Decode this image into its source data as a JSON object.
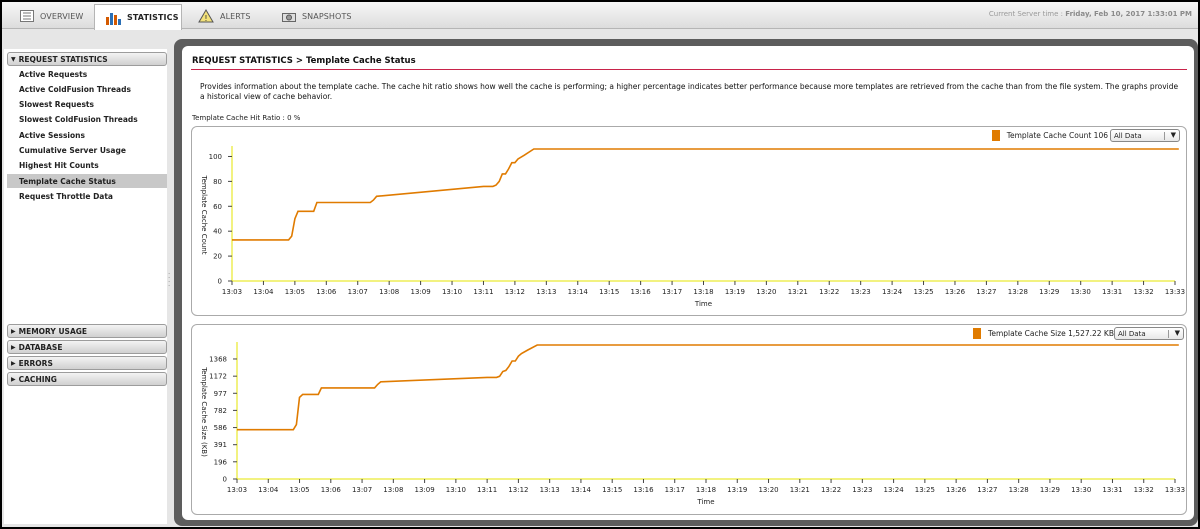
{
  "tabs": [
    {
      "label": "OVERVIEW",
      "icon": "list-icon"
    },
    {
      "label": "STATISTICS",
      "icon": "bar-chart-icon",
      "active": true
    },
    {
      "label": "ALERTS",
      "icon": "warning-icon"
    },
    {
      "label": "SNAPSHOTS",
      "icon": "camera-icon"
    }
  ],
  "server_time": {
    "label": "Current Server time : ",
    "value": "Friday, Feb 10, 2017  1:33:01 PM"
  },
  "sidebar": {
    "request_section": "REQUEST STATISTICS",
    "items": [
      "Active Requests",
      "Active ColdFusion Threads",
      "Slowest Requests",
      "Slowest ColdFusion Threads",
      "Active Sessions",
      "Cumulative Server Usage",
      "Highest Hit Counts",
      "Template Cache Status",
      "Request Throttle Data"
    ],
    "selected_index": 7,
    "other_sections": [
      "MEMORY USAGE",
      "DATABASE",
      "ERRORS",
      "CACHING"
    ]
  },
  "page": {
    "title": "REQUEST STATISTICS > Template Cache Status",
    "description": "Provides information about the template cache. The cache hit ratio shows how well the cache is performing; a higher percentage indicates better performance because more templates are retrieved from the cache than from the file system. The graphs provide a historical view of cache behavior.",
    "hit_ratio": "Template Cache Hit Ratio : 0 %"
  },
  "colors": {
    "series": "#e07b00",
    "accent_line": "#c8234a",
    "axis_yellow": "#e6e600"
  },
  "chart_data": [
    {
      "type": "line",
      "legend_label": "Template Cache Count 106",
      "dropdown_value": "All Data",
      "ylabel": "Template Cache Count",
      "xlabel": "Time",
      "yticks": [
        0,
        20,
        40,
        60,
        80,
        100
      ],
      "ylim": [
        0,
        106
      ],
      "xticks": [
        "13:03",
        "13:04",
        "13:05",
        "13:06",
        "13:07",
        "13:08",
        "13:09",
        "13:10",
        "13:11",
        "13:12",
        "13:13",
        "13:14",
        "13:15",
        "13:16",
        "13:17",
        "13:18",
        "13:19",
        "13:20",
        "13:21",
        "13:22",
        "13:23",
        "13:24",
        "13:25",
        "13:26",
        "13:27",
        "13:28",
        "13:29",
        "13:30",
        "13:31",
        "13:32",
        "13:33"
      ],
      "series": [
        {
          "x": [
            0,
            1.8,
            1.9,
            2.0,
            2.1,
            2.6,
            2.7,
            3.8,
            3.9,
            4.0,
            4.2,
            4.4,
            4.5,
            4.6,
            8,
            8.1,
            8.3,
            8.4,
            8.5,
            8.6,
            8.7,
            8.8,
            8.9,
            9.0,
            9.1,
            9.3,
            9.6,
            10.2,
            10.3,
            30.5
          ],
          "y": [
            33,
            33,
            36,
            50,
            56,
            56,
            63,
            63,
            63,
            63,
            63,
            63,
            65,
            68,
            76,
            76,
            76,
            77,
            80,
            86,
            86,
            90,
            95,
            95,
            98,
            101,
            106,
            106,
            106,
            106
          ]
        }
      ]
    },
    {
      "type": "line",
      "legend_label": "Template Cache Size 1,527.22 KB",
      "dropdown_value": "All Data",
      "ylabel": "Template Cache Size (KB)",
      "xlabel": "Time",
      "yticks": [
        0,
        196,
        391,
        586,
        782,
        977,
        1172,
        1368
      ],
      "ylim": [
        0,
        1527.22
      ],
      "xticks": [
        "13:03",
        "13:04",
        "13:05",
        "13:06",
        "13:07",
        "13:08",
        "13:09",
        "13:10",
        "13:11",
        "13:12",
        "13:13",
        "13:14",
        "13:15",
        "13:16",
        "13:17",
        "13:18",
        "13:19",
        "13:20",
        "13:21",
        "13:22",
        "13:23",
        "13:24",
        "13:25",
        "13:26",
        "13:27",
        "13:28",
        "13:29",
        "13:30",
        "13:31",
        "13:32",
        "13:33"
      ],
      "series": [
        {
          "x": [
            0,
            1.8,
            1.9,
            2.0,
            2.1,
            2.6,
            2.7,
            3.8,
            4.4,
            4.5,
            4.6,
            8,
            8.1,
            8.3,
            8.4,
            8.5,
            8.6,
            8.7,
            8.8,
            8.9,
            9.0,
            9.1,
            9.3,
            9.6,
            10.2,
            10.3,
            30.5
          ],
          "y": [
            562,
            562,
            620,
            930,
            964,
            964,
            1038,
            1038,
            1038,
            1078,
            1108,
            1158,
            1158,
            1158,
            1170,
            1225,
            1238,
            1285,
            1345,
            1345,
            1400,
            1430,
            1470,
            1527,
            1527,
            1527,
            1527
          ]
        }
      ]
    }
  ]
}
